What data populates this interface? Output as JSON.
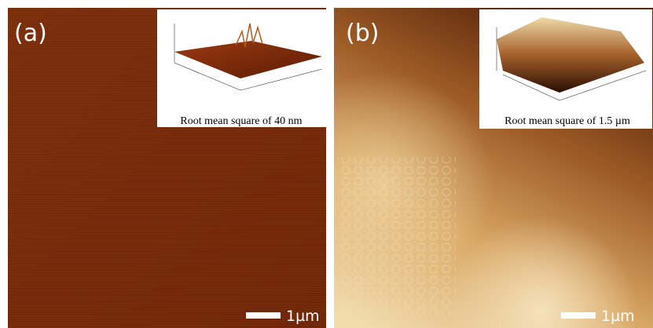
{
  "panels": [
    {
      "label": "(a)",
      "inset_caption": "Root mean square of 40 nm",
      "scale_bar": "1µm"
    },
    {
      "label": "(b)",
      "inset_caption": "Root mean square of 1.5 µm",
      "scale_bar": "1µm"
    }
  ]
}
